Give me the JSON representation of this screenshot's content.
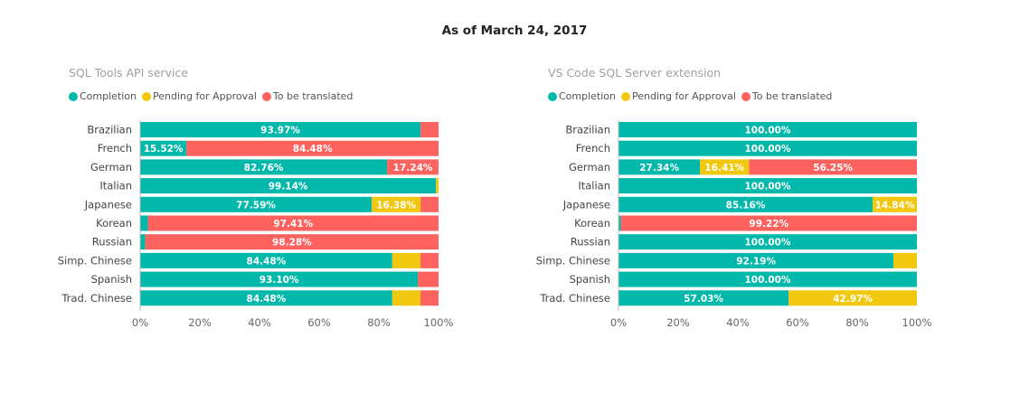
{
  "header": {
    "title": "As of March 24, 2017"
  },
  "colors": {
    "completion": "#01B8AA",
    "pending": "#F2C80F",
    "to_translate": "#FD625E"
  },
  "chart_data": [
    {
      "type": "bar",
      "orientation": "horizontal",
      "stacked": "percent",
      "title": "SQL Tools API service",
      "legend": [
        "Completion",
        "Pending for Approval",
        "To be translated"
      ],
      "legend_position": "top-left",
      "categories": [
        "Brazilian",
        "French",
        "German",
        "Italian",
        "Japanese",
        "Korean",
        "Russian",
        "Simp. Chinese",
        "Spanish",
        "Trad. Chinese"
      ],
      "series": [
        {
          "name": "Completion",
          "values": [
            93.97,
            15.52,
            82.76,
            99.14,
            77.59,
            2.59,
            1.72,
            84.48,
            93.1,
            84.48
          ],
          "labels": [
            "93.97%",
            "15.52%",
            "82.76%",
            "99.14%",
            "77.59%",
            "",
            "",
            "84.48%",
            "93.10%",
            "84.48%"
          ]
        },
        {
          "name": "Pending for Approval",
          "values": [
            0,
            0,
            0,
            0.86,
            16.38,
            0,
            0,
            9.48,
            0,
            9.48
          ],
          "labels": [
            "",
            "",
            "",
            "",
            "16.38%",
            "",
            "",
            "",
            "",
            ""
          ]
        },
        {
          "name": "To be translated",
          "values": [
            6.03,
            84.48,
            17.24,
            0,
            6.03,
            97.41,
            98.28,
            6.04,
            6.9,
            6.04
          ],
          "labels": [
            "",
            "84.48%",
            "17.24%",
            "",
            "",
            "97.41%",
            "98.28%",
            "",
            "",
            ""
          ]
        }
      ],
      "xlim": [
        0,
        100
      ],
      "xticks": [
        "0%",
        "20%",
        "40%",
        "60%",
        "80%",
        "100%"
      ]
    },
    {
      "type": "bar",
      "orientation": "horizontal",
      "stacked": "percent",
      "title": "VS Code SQL Server extension",
      "legend": [
        "Completion",
        "Pending for Approval",
        "To be translated"
      ],
      "legend_position": "top-left",
      "categories": [
        "Brazilian",
        "French",
        "German",
        "Italian",
        "Japanese",
        "Korean",
        "Russian",
        "Simp. Chinese",
        "Spanish",
        "Trad. Chinese"
      ],
      "series": [
        {
          "name": "Completion",
          "values": [
            100,
            100,
            27.34,
            100,
            85.16,
            0.78,
            100,
            92.19,
            100,
            57.03
          ],
          "labels": [
            "100.00%",
            "100.00%",
            "27.34%",
            "100.00%",
            "85.16%",
            "",
            "100.00%",
            "92.19%",
            "100.00%",
            "57.03%"
          ]
        },
        {
          "name": "Pending for Approval",
          "values": [
            0,
            0,
            16.41,
            0,
            14.84,
            0,
            0,
            7.81,
            0,
            42.97
          ],
          "labels": [
            "",
            "",
            "16.41%",
            "",
            "14.84%",
            "",
            "",
            "",
            "",
            "42.97%"
          ]
        },
        {
          "name": "To be translated",
          "values": [
            0,
            0,
            56.25,
            0,
            0,
            99.22,
            0,
            0,
            0,
            0
          ],
          "labels": [
            "",
            "",
            "56.25%",
            "",
            "",
            "99.22%",
            "",
            "",
            "",
            ""
          ]
        }
      ],
      "xlim": [
        0,
        100
      ],
      "xticks": [
        "0%",
        "20%",
        "40%",
        "60%",
        "80%",
        "100%"
      ]
    }
  ]
}
